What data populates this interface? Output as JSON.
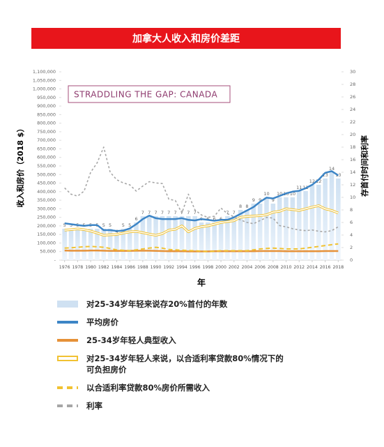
{
  "chart_data": {
    "type": "combo",
    "title": "加拿大人收入和房价差距",
    "annotation": "STRADDLING THE GAP: CANADA",
    "x_label": "年",
    "y_label": "收入和房价（2018 $）",
    "y2_label": "存首付时间和利率",
    "x": [
      1976,
      1977,
      1978,
      1979,
      1980,
      1981,
      1982,
      1983,
      1984,
      1985,
      1986,
      1987,
      1988,
      1989,
      1990,
      1991,
      1992,
      1993,
      1994,
      1995,
      1996,
      1997,
      1998,
      1999,
      2000,
      2001,
      2002,
      2003,
      2004,
      2005,
      2006,
      2007,
      2008,
      2009,
      2010,
      2011,
      2012,
      2013,
      2014,
      2015,
      2016,
      2017,
      2018
    ],
    "xticks": [
      1976,
      1978,
      1980,
      1982,
      1984,
      1986,
      1988,
      1990,
      1992,
      1994,
      1996,
      1998,
      2000,
      2002,
      2004,
      2006,
      2008,
      2010,
      2012,
      2014,
      2016,
      2018
    ],
    "ylim": [
      0,
      1100000
    ],
    "yticks": [
      {
        "value": 0,
        "label": "-"
      },
      {
        "value": 50000,
        "label": "50,000"
      },
      {
        "value": 100000,
        "label": "100,000"
      },
      {
        "value": 150000,
        "label": "150,000"
      },
      {
        "value": 200000,
        "label": "200,000"
      },
      {
        "value": 250000,
        "label": "250,000"
      },
      {
        "value": 300000,
        "label": "300,000"
      },
      {
        "value": 350000,
        "label": "350,000"
      },
      {
        "value": 400000,
        "label": "400,000"
      },
      {
        "value": 450000,
        "label": "450,000"
      },
      {
        "value": 500000,
        "label": "500,000"
      },
      {
        "value": 550000,
        "label": "550,000"
      },
      {
        "value": 600000,
        "label": "600,000"
      },
      {
        "value": 650000,
        "label": "650,000"
      },
      {
        "value": 700000,
        "label": "700,000"
      },
      {
        "value": 750000,
        "label": "750,000"
      },
      {
        "value": 800000,
        "label": "800,000"
      },
      {
        "value": 850000,
        "label": "850,000"
      },
      {
        "value": 900000,
        "label": "900,000"
      },
      {
        "value": 950000,
        "label": "950,000"
      },
      {
        "value": 1000000,
        "label": "1,000,000"
      },
      {
        "value": 1050000,
        "label": "1,050,000"
      },
      {
        "value": 1100000,
        "label": "1,100,000"
      }
    ],
    "y2lim": [
      0,
      30
    ],
    "y2ticks": [
      0,
      2,
      4,
      6,
      8,
      10,
      12,
      14,
      16,
      18,
      20,
      22,
      24,
      26,
      28,
      30
    ],
    "series": [
      {
        "name": "对25-34岁年轻来说存20%首付的年数",
        "type": "bar",
        "axis": "y2",
        "color": "#cfe1f2",
        "values": [
          5,
          5,
          5,
          5,
          5,
          5,
          5,
          5,
          4,
          5,
          5,
          6,
          7,
          7,
          7,
          7,
          7,
          7,
          7,
          7,
          7,
          6,
          6,
          6,
          6,
          7,
          7,
          8,
          8,
          9,
          9,
          10,
          9,
          10,
          10,
          10,
          11,
          11,
          12,
          12,
          13,
          14,
          13
        ]
      },
      {
        "name": "平均房价",
        "type": "line",
        "line_style": "solid",
        "color": "#3d85c6",
        "values": [
          215000,
          210000,
          205000,
          200000,
          205000,
          205000,
          175000,
          175000,
          170000,
          172000,
          185000,
          210000,
          240000,
          260000,
          245000,
          240000,
          240000,
          240000,
          245000,
          235000,
          232000,
          240000,
          235000,
          230000,
          235000,
          235000,
          250000,
          270000,
          290000,
          310000,
          340000,
          365000,
          360000,
          375000,
          390000,
          400000,
          405000,
          420000,
          440000,
          470000,
          510000,
          520000,
          495000
        ]
      },
      {
        "name": "25-34岁年轻人典型收入",
        "type": "line",
        "line_style": "solid",
        "color": "#e69138",
        "values": [
          56000,
          55000,
          55000,
          55000,
          56000,
          56000,
          55000,
          54000,
          54000,
          54000,
          54000,
          55000,
          55000,
          55000,
          54000,
          53000,
          52000,
          52000,
          52000,
          51000,
          51000,
          51000,
          51000,
          52000,
          52000,
          52000,
          52000,
          52000,
          52000,
          52000,
          53000,
          53000,
          53000,
          53000,
          52000,
          52000,
          52000,
          52000,
          52000,
          52000,
          53000,
          53000,
          53000
        ]
      },
      {
        "name": "对25-34岁年轻人来说，以合适利率贷款80%情况下的可负担房价",
        "type": "line",
        "line_style": "hollow",
        "color": "#f1c232",
        "values": [
          175000,
          178000,
          182000,
          178000,
          170000,
          158000,
          145000,
          148000,
          150000,
          158000,
          165000,
          168000,
          160000,
          152000,
          145000,
          155000,
          175000,
          180000,
          200000,
          165000,
          185000,
          195000,
          200000,
          210000,
          220000,
          225000,
          230000,
          250000,
          255000,
          258000,
          260000,
          265000,
          280000,
          285000,
          300000,
          295000,
          290000,
          300000,
          310000,
          318000,
          300000,
          290000,
          275000
        ]
      },
      {
        "name": "以合适利率贷款80%房价所需收入",
        "type": "line",
        "line_style": "dashed",
        "color": "#f1c232",
        "values": [
          70000,
          72000,
          75000,
          78000,
          80000,
          78000,
          75000,
          68000,
          60000,
          57000,
          55000,
          60000,
          65000,
          70000,
          75000,
          70000,
          62000,
          60000,
          58000,
          56000,
          55000,
          52000,
          50000,
          52000,
          55000,
          55000,
          55000,
          55000,
          55000,
          60000,
          65000,
          68000,
          70000,
          68000,
          65000,
          65000,
          65000,
          70000,
          75000,
          80000,
          85000,
          90000,
          95000
        ]
      },
      {
        "name": "利率",
        "type": "line",
        "line_style": "dotted",
        "axis": "y2",
        "color": "#a6a6a6",
        "values": [
          11.5,
          10.5,
          10.2,
          11,
          14,
          15.5,
          18,
          14,
          12.8,
          12.3,
          12,
          11,
          11.8,
          12.5,
          12.3,
          12.2,
          9.7,
          9.5,
          7.5,
          10.5,
          8,
          7.2,
          6.8,
          7,
          8.3,
          7.4,
          6.9,
          6.4,
          6,
          5.8,
          6.3,
          6.8,
          6.7,
          5.5,
          5.3,
          5,
          4.8,
          4.7,
          4.8,
          4.6,
          4.5,
          4.7,
          5.3
        ]
      }
    ]
  }
}
